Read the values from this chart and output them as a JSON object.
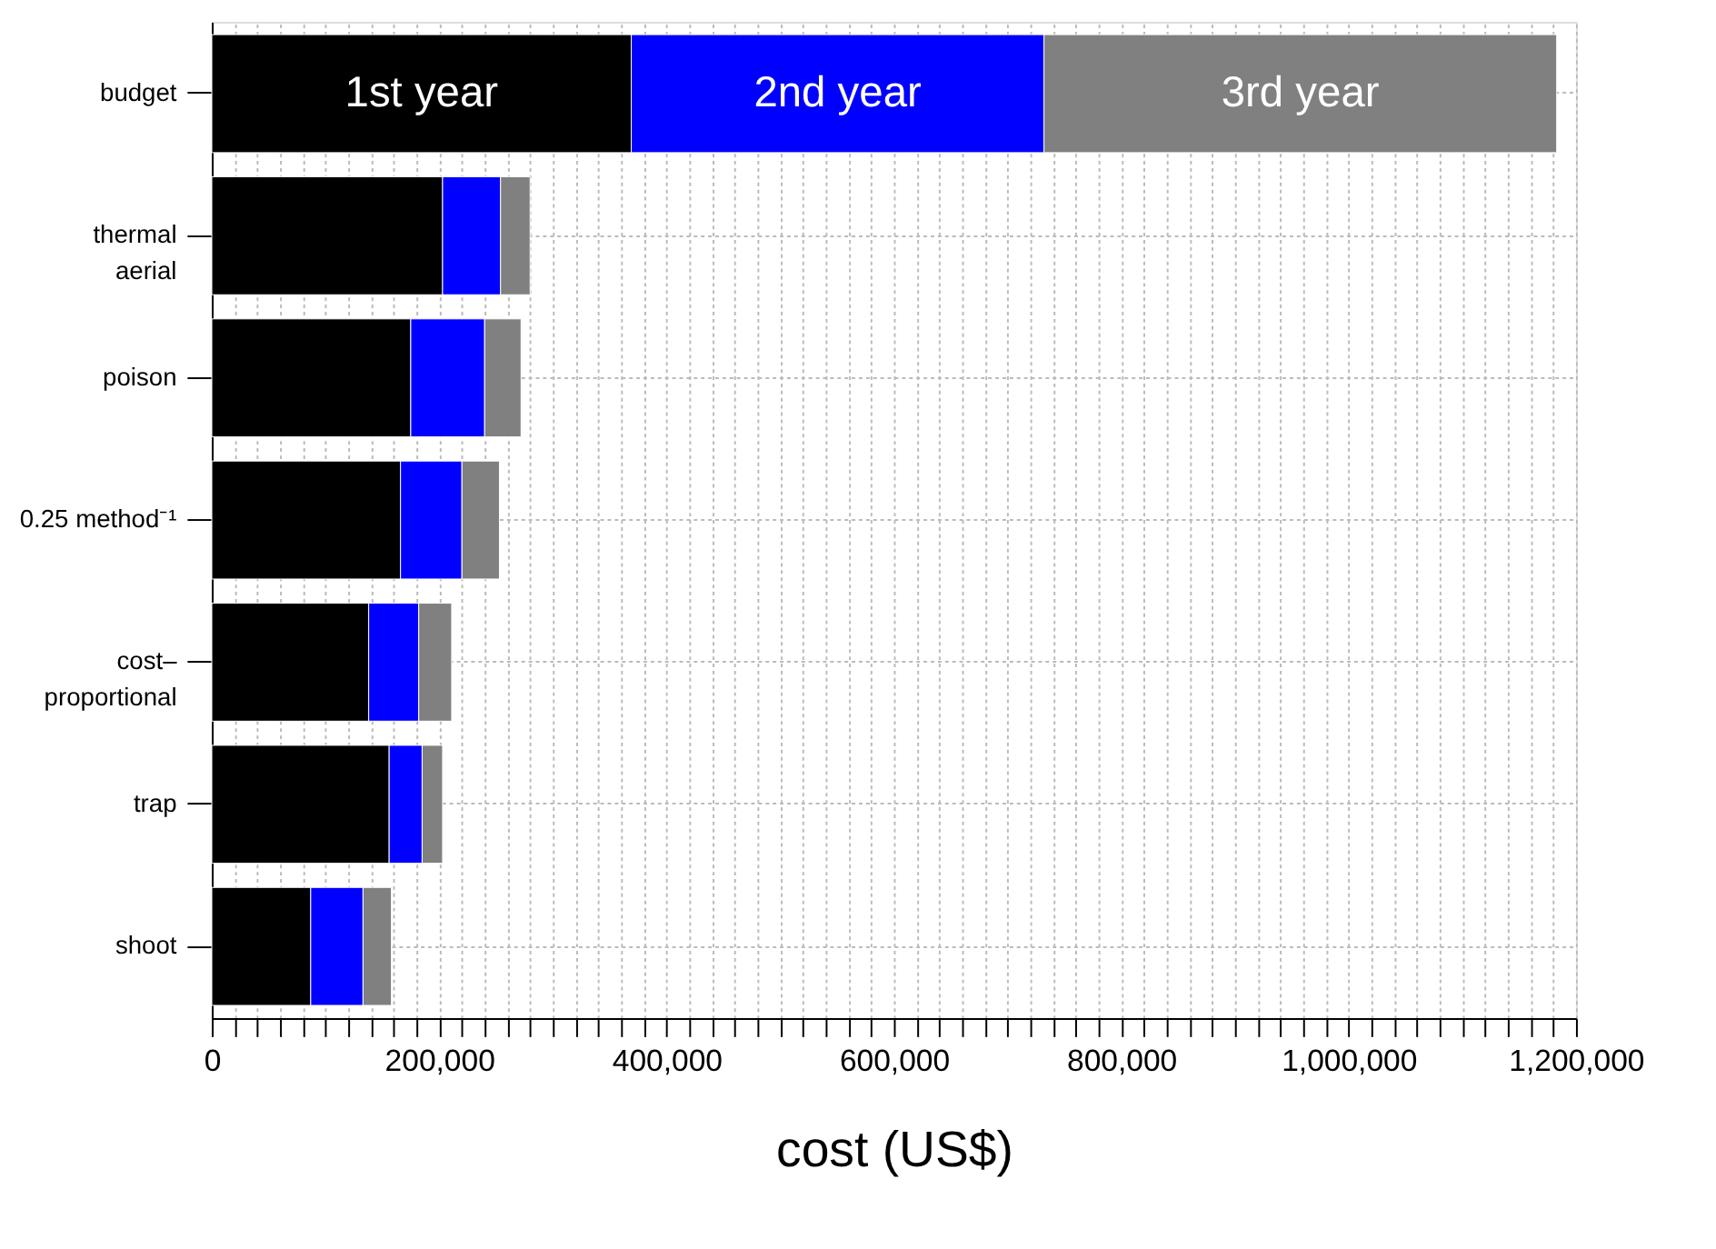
{
  "chart_data": {
    "type": "bar",
    "orientation": "horizontal",
    "stacked": true,
    "categories": [
      "budget",
      "thermal\naerial",
      "poison",
      "0.25 method⁻¹",
      "cost–\nproportional",
      "trap",
      "shoot"
    ],
    "series": [
      {
        "name": "1st year",
        "color": "#000000",
        "values": [
          369000,
          203000,
          175000,
          166000,
          138000,
          156000,
          87000
        ]
      },
      {
        "name": "2nd year",
        "color": "#0000ff",
        "values": [
          363000,
          51000,
          65000,
          54000,
          44000,
          29000,
          46000
        ]
      },
      {
        "name": "3rd year",
        "color": "#808080",
        "values": [
          451000,
          26000,
          32000,
          33000,
          29000,
          18000,
          25000
        ]
      }
    ],
    "xlabel": "cost (US$)",
    "xlim": [
      0,
      1200000
    ],
    "xticks": [
      0,
      {
        "value": 20000,
        "label": null
      },
      {
        "value": 40000,
        "label": null
      },
      {
        "value": 60000,
        "label": null
      },
      {
        "value": 80000,
        "label": null
      },
      {
        "value": 100000,
        "label": null
      },
      {
        "value": 120000,
        "label": null
      },
      {
        "value": 140000,
        "label": null
      },
      {
        "value": 160000,
        "label": null
      },
      {
        "value": 180000,
        "label": null
      },
      {
        "value": 200000,
        "label": "200,000"
      },
      {
        "value": 220000,
        "label": null
      },
      {
        "value": 240000,
        "label": null
      },
      {
        "value": 260000,
        "label": null
      },
      {
        "value": 280000,
        "label": null
      },
      {
        "value": 300000,
        "label": null
      },
      {
        "value": 320000,
        "label": null
      },
      {
        "value": 340000,
        "label": null
      },
      {
        "value": 360000,
        "label": null
      },
      {
        "value": 380000,
        "label": null
      },
      {
        "value": 400000,
        "label": "400,000"
      },
      {
        "value": 420000,
        "label": null
      },
      {
        "value": 440000,
        "label": null
      },
      {
        "value": 460000,
        "label": null
      },
      {
        "value": 480000,
        "label": null
      },
      {
        "value": 500000,
        "label": null
      },
      {
        "value": 520000,
        "label": null
      },
      {
        "value": 540000,
        "label": null
      },
      {
        "value": 560000,
        "label": null
      },
      {
        "value": 580000,
        "label": null
      },
      {
        "value": 600000,
        "label": "600,000"
      },
      {
        "value": 620000,
        "label": null
      },
      {
        "value": 640000,
        "label": null
      },
      {
        "value": 660000,
        "label": null
      },
      {
        "value": 680000,
        "label": null
      },
      {
        "value": 700000,
        "label": null
      },
      {
        "value": 720000,
        "label": null
      },
      {
        "value": 740000,
        "label": null
      },
      {
        "value": 760000,
        "label": null
      },
      {
        "value": 780000,
        "label": null
      },
      {
        "value": 800000,
        "label": "800,000"
      },
      {
        "value": 820000,
        "label": null
      },
      {
        "value": 840000,
        "label": null
      },
      {
        "value": 860000,
        "label": null
      },
      {
        "value": 880000,
        "label": null
      },
      {
        "value": 900000,
        "label": null
      },
      {
        "value": 920000,
        "label": null
      },
      {
        "value": 940000,
        "label": null
      },
      {
        "value": 960000,
        "label": null
      },
      {
        "value": 980000,
        "label": null
      },
      {
        "value": 1000000,
        "label": "1,000,000"
      },
      {
        "value": 1020000,
        "label": null
      },
      {
        "value": 1040000,
        "label": null
      },
      {
        "value": 1060000,
        "label": null
      },
      {
        "value": 1080000,
        "label": null
      },
      {
        "value": 1100000,
        "label": null
      },
      {
        "value": 1120000,
        "label": null
      },
      {
        "value": 1140000,
        "label": null
      },
      {
        "value": 1160000,
        "label": null
      },
      {
        "value": 1180000,
        "label": null
      },
      {
        "value": 1200000,
        "label": "1,200,000"
      }
    ],
    "grid": true,
    "legend": false
  }
}
